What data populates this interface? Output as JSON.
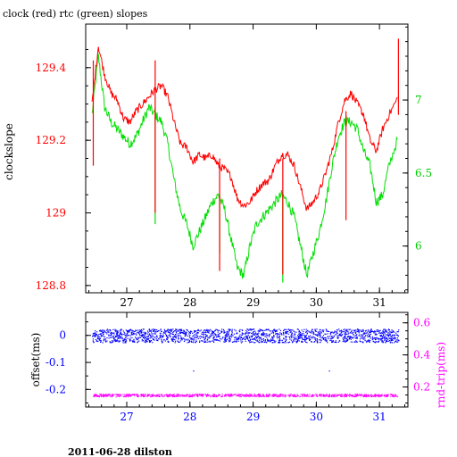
{
  "page": {
    "title": "clock (red) rtc (green) slopes",
    "footer": "2011-06-28 dilston"
  },
  "colors": {
    "clock": "#ff0000",
    "rtc": "#00e000",
    "offset": "#0000ff",
    "rndtrip": "#ff00ff",
    "axis_top_left": "#ff0000",
    "axis_top_right": "#00cc00",
    "axis_bottom_left": "#0000ff",
    "axis_bottom_right": "#ff00ff",
    "axis_bottom_x": "#0000ff"
  },
  "chart_data": [
    {
      "type": "line",
      "title": "clock (red) rtc (green) slopes",
      "ylabel": "clockslope",
      "xlim": [
        26.35,
        31.45
      ],
      "ylim": [
        128.78,
        129.52
      ],
      "ylim_right": [
        5.68,
        7.52
      ],
      "x_ticks": [
        "27",
        "28",
        "29",
        "30",
        "31"
      ],
      "y_ticks": [
        "128.8",
        "129",
        "129.2",
        "129.4"
      ],
      "y_ticks_right": [
        "6",
        "6.5",
        "7"
      ],
      "series": [
        {
          "name": "clock",
          "axis": "left",
          "x": [
            26.45,
            26.55,
            26.65,
            26.75,
            26.85,
            26.95,
            27.05,
            27.15,
            27.25,
            27.35,
            27.45,
            27.55,
            27.65,
            27.75,
            27.85,
            27.95,
            28.05,
            28.15,
            28.25,
            28.35,
            28.45,
            28.55,
            28.65,
            28.75,
            28.85,
            28.95,
            29.05,
            29.15,
            29.25,
            29.35,
            29.45,
            29.55,
            29.65,
            29.75,
            29.85,
            29.95,
            30.05,
            30.15,
            30.25,
            30.35,
            30.45,
            30.55,
            30.65,
            30.75,
            30.85,
            30.95,
            31.05,
            31.15,
            31.3
          ],
          "values": [
            129.3,
            129.46,
            129.38,
            129.33,
            129.31,
            129.26,
            129.25,
            129.28,
            129.3,
            129.32,
            129.34,
            129.35,
            129.32,
            129.25,
            129.19,
            129.18,
            129.14,
            129.16,
            129.15,
            129.16,
            129.13,
            129.12,
            129.1,
            129.04,
            129.02,
            129.03,
            129.06,
            129.08,
            129.09,
            129.13,
            129.16,
            129.16,
            129.13,
            129.07,
            129.01,
            129.03,
            129.06,
            129.11,
            129.17,
            129.25,
            129.31,
            129.33,
            129.3,
            129.27,
            129.2,
            129.17,
            129.23,
            129.27,
            129.32
          ],
          "spikes": [
            {
              "x": 26.47,
              "low": 129.13,
              "high": 129.42
            },
            {
              "x": 27.45,
              "low": 129.0,
              "high": 129.42
            },
            {
              "x": 28.47,
              "low": 128.84,
              "high": 129.15
            },
            {
              "x": 29.47,
              "low": 128.83,
              "high": 129.15
            },
            {
              "x": 30.47,
              "low": 128.98,
              "high": 129.28
            },
            {
              "x": 31.3,
              "low": 129.27,
              "high": 129.48
            }
          ]
        },
        {
          "name": "rtc",
          "axis": "right",
          "x": [
            26.45,
            26.55,
            26.65,
            26.75,
            26.85,
            26.95,
            27.05,
            27.15,
            27.25,
            27.35,
            27.45,
            27.55,
            27.65,
            27.75,
            27.85,
            27.95,
            28.05,
            28.15,
            28.25,
            28.35,
            28.45,
            28.55,
            28.65,
            28.75,
            28.85,
            28.95,
            29.05,
            29.15,
            29.25,
            29.35,
            29.45,
            29.55,
            29.65,
            29.75,
            29.85,
            29.95,
            30.05,
            30.15,
            30.25,
            30.35,
            30.45,
            30.55,
            30.65,
            30.75,
            30.85,
            30.95,
            31.05,
            31.15,
            31.3
          ],
          "values": [
            6.9,
            7.3,
            6.95,
            6.85,
            6.8,
            6.75,
            6.7,
            6.75,
            6.85,
            6.95,
            6.9,
            6.85,
            6.7,
            6.45,
            6.25,
            6.15,
            6.0,
            6.1,
            6.2,
            6.3,
            6.35,
            6.25,
            6.05,
            5.85,
            5.8,
            6.0,
            6.15,
            6.2,
            6.25,
            6.3,
            6.35,
            6.3,
            6.2,
            6.0,
            5.8,
            5.95,
            6.1,
            6.3,
            6.55,
            6.75,
            6.85,
            6.85,
            6.8,
            6.65,
            6.55,
            6.3,
            6.35,
            6.55,
            6.75
          ],
          "spikes": [
            {
              "x": 27.45,
              "low": 6.15,
              "high": 6.95
            },
            {
              "x": 28.47,
              "low": 5.95,
              "high": 6.35
            },
            {
              "x": 29.47,
              "low": 5.75,
              "high": 6.35
            }
          ]
        }
      ]
    },
    {
      "type": "scatter",
      "ylabel": "offset(ms)",
      "ylabel_right": "rnd-trip(ms)",
      "xlim": [
        26.35,
        31.45
      ],
      "ylim": [
        -0.265,
        0.085
      ],
      "ylim_right": [
        0.075,
        0.665
      ],
      "x_ticks": [
        "27",
        "28",
        "29",
        "30",
        "31"
      ],
      "y_ticks": [
        "-0.2",
        "-0.1",
        "0"
      ],
      "y_ticks_right": [
        "0.2",
        "0.4",
        "0.6"
      ],
      "series": [
        {
          "name": "offset",
          "axis": "left",
          "x_range": [
            26.45,
            31.3
          ],
          "center": 0.0,
          "spread": 0.025
        },
        {
          "name": "rnd-trip",
          "axis": "right",
          "x_range": [
            26.45,
            31.3
          ],
          "center": 0.15,
          "spread": 0.008
        }
      ]
    }
  ]
}
